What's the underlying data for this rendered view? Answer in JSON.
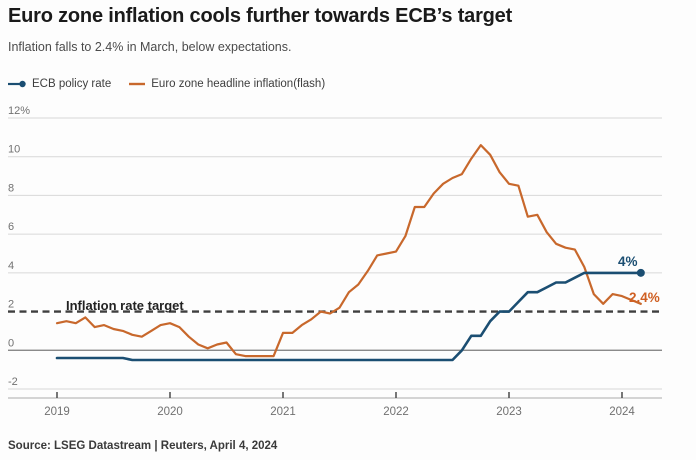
{
  "header": {
    "title": "Euro zone inflation cools further towards ECB’s target",
    "subtitle": "Inflation falls to 2.4% in March, below expectations."
  },
  "legend": [
    {
      "label": "ECB policy rate",
      "color": "#1b4e72",
      "marker": "line-dot"
    },
    {
      "label": "Euro zone headline inflation(flash)",
      "color": "#c8682c",
      "marker": "line"
    }
  ],
  "annotations": {
    "target_label": "Inflation rate target",
    "policy_end_label": "4%",
    "inflation_end_label": "2.4%"
  },
  "source": "Source: LSEG Datastream | Reuters, April 4, 2024",
  "colors": {
    "policy_blue": "#1b4e72",
    "inflation_orange": "#c8682c",
    "end_label_orange": "#cf5f22",
    "end_label_blue": "#1b4e72",
    "target_dash": "#3e3e3e",
    "gridline": "#d8d8d8",
    "zero_line": "#7a7a7a",
    "axis_line": "#bcbcbc",
    "tick_mark": "#4a4a4a",
    "axis_text": "#717171"
  },
  "chart_data": {
    "type": "line",
    "title": "Euro zone inflation cools further towards ECB's target",
    "x_unit": "monthly, decimal years",
    "x_start_month": "2019-01",
    "x_end_month": "2024-03",
    "x_ticks": [
      "2019",
      "2020",
      "2021",
      "2022",
      "2023",
      "2024"
    ],
    "x_tick_years": [
      2019,
      2020,
      2021,
      2022,
      2023,
      2024
    ],
    "y_ticks": [
      12,
      10,
      8,
      6,
      4,
      2,
      0,
      -2
    ],
    "y_tick_labels": [
      "12%",
      "10",
      "8",
      "6",
      "4",
      "2",
      "0",
      "-2"
    ],
    "ylim": [
      -2,
      12
    ],
    "grid": true,
    "legend_position": "top-left",
    "target_line_value": 2,
    "series": [
      {
        "name": "Euro zone headline inflation(flash)",
        "color": "#c8682c",
        "width": 2.2,
        "end_marker": "none",
        "values": [
          1.4,
          1.5,
          1.4,
          1.7,
          1.2,
          1.3,
          1.1,
          1.0,
          0.8,
          0.7,
          1.0,
          1.3,
          1.4,
          1.2,
          0.7,
          0.3,
          0.1,
          0.3,
          0.4,
          -0.2,
          -0.3,
          -0.3,
          -0.3,
          -0.3,
          0.9,
          0.9,
          1.3,
          1.6,
          2.0,
          1.9,
          2.2,
          3.0,
          3.4,
          4.1,
          4.9,
          5.0,
          5.1,
          5.9,
          7.4,
          7.4,
          8.1,
          8.6,
          8.9,
          9.1,
          9.9,
          10.6,
          10.1,
          9.2,
          8.6,
          8.5,
          6.9,
          7.0,
          6.1,
          5.5,
          5.3,
          5.2,
          4.3,
          2.9,
          2.4,
          2.9,
          2.8,
          2.6,
          2.4
        ]
      },
      {
        "name": "ECB policy rate",
        "color": "#1b4e72",
        "width": 2.6,
        "end_marker": "dot",
        "values": [
          -0.4,
          -0.4,
          -0.4,
          -0.4,
          -0.4,
          -0.4,
          -0.4,
          -0.4,
          -0.5,
          -0.5,
          -0.5,
          -0.5,
          -0.5,
          -0.5,
          -0.5,
          -0.5,
          -0.5,
          -0.5,
          -0.5,
          -0.5,
          -0.5,
          -0.5,
          -0.5,
          -0.5,
          -0.5,
          -0.5,
          -0.5,
          -0.5,
          -0.5,
          -0.5,
          -0.5,
          -0.5,
          -0.5,
          -0.5,
          -0.5,
          -0.5,
          -0.5,
          -0.5,
          -0.5,
          -0.5,
          -0.5,
          -0.5,
          -0.5,
          0.0,
          0.75,
          0.75,
          1.5,
          2.0,
          2.0,
          2.5,
          3.0,
          3.0,
          3.25,
          3.5,
          3.5,
          3.75,
          4.0,
          4.0,
          4.0,
          4.0,
          4.0,
          4.0,
          4.0
        ]
      }
    ]
  }
}
